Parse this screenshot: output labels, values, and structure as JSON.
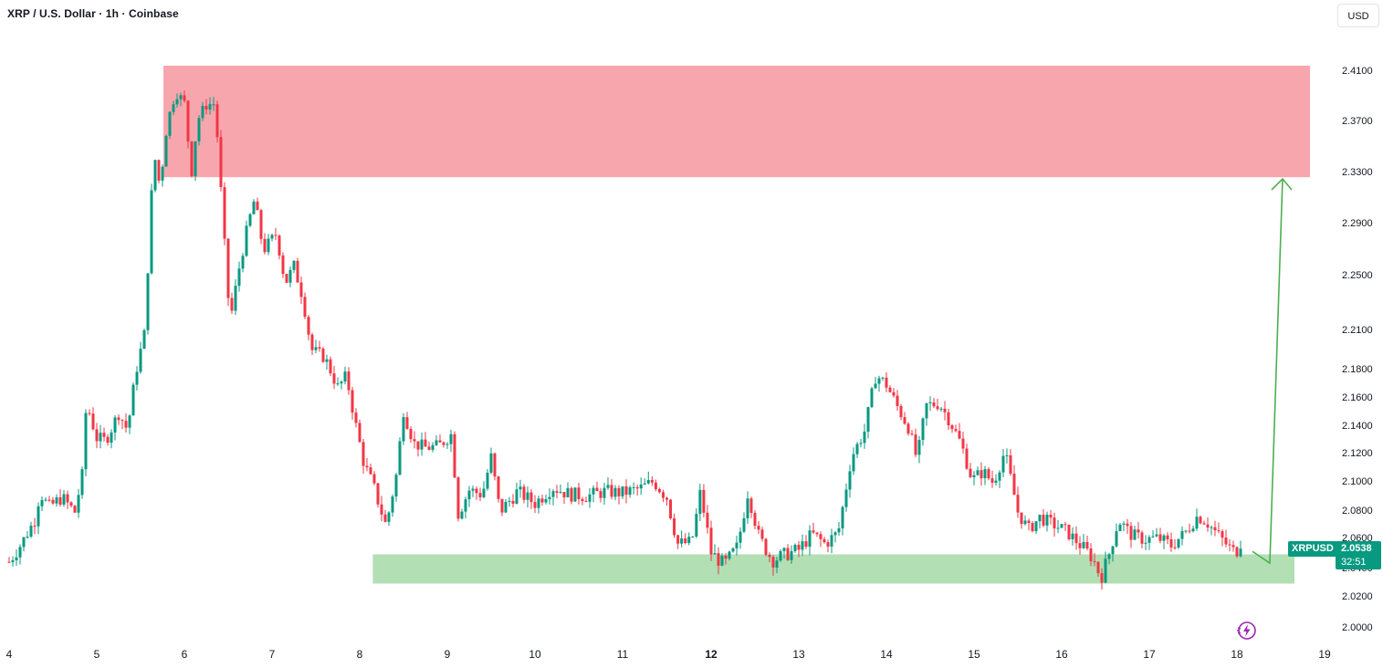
{
  "header": {
    "title": "XRP / U.S. Dollar · 1h · Coinbase",
    "currency": "USD"
  },
  "price_axis": {
    "labels": [
      "2.4100",
      "2.3700",
      "2.3300",
      "2.2900",
      "2.2500",
      "2.2100",
      "2.1800",
      "2.1600",
      "2.1400",
      "2.1200",
      "2.1000",
      "2.0800",
      "2.0600",
      "2.0400",
      "2.0200",
      "2.0000"
    ]
  },
  "time_axis": {
    "labels": [
      {
        "text": "4",
        "bold": false
      },
      {
        "text": "5",
        "bold": false
      },
      {
        "text": "6",
        "bold": false
      },
      {
        "text": "7",
        "bold": false
      },
      {
        "text": "8",
        "bold": false
      },
      {
        "text": "9",
        "bold": false
      },
      {
        "text": "10",
        "bold": false
      },
      {
        "text": "11",
        "bold": false
      },
      {
        "text": "12",
        "bold": true
      },
      {
        "text": "13",
        "bold": false
      },
      {
        "text": "14",
        "bold": false
      },
      {
        "text": "15",
        "bold": false
      },
      {
        "text": "16",
        "bold": false
      },
      {
        "text": "17",
        "bold": false
      },
      {
        "text": "18",
        "bold": false
      },
      {
        "text": "19",
        "bold": false
      }
    ]
  },
  "last_price": {
    "symbol": "XRPUSD",
    "value": "2.0538",
    "countdown": "32:51"
  },
  "colors": {
    "up": "#089981",
    "down": "#f23645",
    "supply_zone": "#f7a6ad",
    "demand_zone": "#b2dfb4",
    "projection": "#4caf50"
  },
  "chart_data": {
    "type": "candlestick",
    "symbol": "XRP / U.S. Dollar",
    "interval": "1h",
    "exchange": "Coinbase",
    "x_axis_days": [
      4,
      5,
      6,
      7,
      8,
      9,
      10,
      11,
      12,
      13,
      14,
      15,
      16,
      17,
      18,
      19
    ],
    "y_range": [
      2.0,
      2.415
    ],
    "zones": [
      {
        "type": "resistance",
        "top": 2.415,
        "bottom": 2.327,
        "start_day": 5.8,
        "end_day": 19.0
      },
      {
        "type": "support",
        "top": 2.05,
        "bottom": 2.03,
        "start_day": 8.15,
        "end_day": 18.65
      }
    ],
    "projection": {
      "from": {
        "day": 18.25,
        "price": 2.045
      },
      "to": {
        "day": 18.5,
        "price": 2.33
      }
    },
    "path_points": [
      [
        4.0,
        2.045
      ],
      [
        4.15,
        2.058
      ],
      [
        4.3,
        2.075
      ],
      [
        4.35,
        2.094
      ],
      [
        4.45,
        2.083
      ],
      [
        4.6,
        2.09
      ],
      [
        4.75,
        2.08
      ],
      [
        4.85,
        2.11
      ],
      [
        4.88,
        2.158
      ],
      [
        5.0,
        2.132
      ],
      [
        5.1,
        2.13
      ],
      [
        5.25,
        2.15
      ],
      [
        5.35,
        2.138
      ],
      [
        5.45,
        2.18
      ],
      [
        5.55,
        2.21
      ],
      [
        5.6,
        2.28
      ],
      [
        5.65,
        2.347
      ],
      [
        5.72,
        2.32
      ],
      [
        5.8,
        2.368
      ],
      [
        5.9,
        2.395
      ],
      [
        6.0,
        2.385
      ],
      [
        6.08,
        2.33
      ],
      [
        6.15,
        2.372
      ],
      [
        6.25,
        2.384
      ],
      [
        6.35,
        2.385
      ],
      [
        6.45,
        2.282
      ],
      [
        6.52,
        2.216
      ],
      [
        6.62,
        2.255
      ],
      [
        6.72,
        2.288
      ],
      [
        6.8,
        2.31
      ],
      [
        6.9,
        2.27
      ],
      [
        7.05,
        2.283
      ],
      [
        7.15,
        2.245
      ],
      [
        7.25,
        2.258
      ],
      [
        7.35,
        2.235
      ],
      [
        7.45,
        2.196
      ],
      [
        7.6,
        2.19
      ],
      [
        7.75,
        2.168
      ],
      [
        7.85,
        2.176
      ],
      [
        7.95,
        2.143
      ],
      [
        8.05,
        2.113
      ],
      [
        8.15,
        2.099
      ],
      [
        8.3,
        2.07
      ],
      [
        8.42,
        2.106
      ],
      [
        8.5,
        2.152
      ],
      [
        8.62,
        2.128
      ],
      [
        8.75,
        2.125
      ],
      [
        8.9,
        2.126
      ],
      [
        9.05,
        2.135
      ],
      [
        9.12,
        2.078
      ],
      [
        9.25,
        2.095
      ],
      [
        9.4,
        2.092
      ],
      [
        9.5,
        2.118
      ],
      [
        9.6,
        2.08
      ],
      [
        9.8,
        2.094
      ],
      [
        10.0,
        2.086
      ],
      [
        10.2,
        2.097
      ],
      [
        10.4,
        2.092
      ],
      [
        10.6,
        2.091
      ],
      [
        10.8,
        2.094
      ],
      [
        11.0,
        2.093
      ],
      [
        11.2,
        2.096
      ],
      [
        11.35,
        2.101
      ],
      [
        11.5,
        2.09
      ],
      [
        11.62,
        2.057
      ],
      [
        11.78,
        2.058
      ],
      [
        11.88,
        2.094
      ],
      [
        12.0,
        2.051
      ],
      [
        12.15,
        2.043
      ],
      [
        12.3,
        2.055
      ],
      [
        12.42,
        2.094
      ],
      [
        12.55,
        2.061
      ],
      [
        12.7,
        2.046
      ],
      [
        12.85,
        2.05
      ],
      [
        13.0,
        2.053
      ],
      [
        13.15,
        2.064
      ],
      [
        13.3,
        2.057
      ],
      [
        13.45,
        2.065
      ],
      [
        13.6,
        2.118
      ],
      [
        13.75,
        2.137
      ],
      [
        13.88,
        2.177
      ],
      [
        14.0,
        2.17
      ],
      [
        14.12,
        2.155
      ],
      [
        14.25,
        2.14
      ],
      [
        14.35,
        2.116
      ],
      [
        14.45,
        2.155
      ],
      [
        14.6,
        2.157
      ],
      [
        14.72,
        2.145
      ],
      [
        14.85,
        2.128
      ],
      [
        14.98,
        2.102
      ],
      [
        15.1,
        2.108
      ],
      [
        15.22,
        2.1
      ],
      [
        15.35,
        2.122
      ],
      [
        15.5,
        2.08
      ],
      [
        15.62,
        2.067
      ],
      [
        15.75,
        2.076
      ],
      [
        15.9,
        2.071
      ],
      [
        16.05,
        2.066
      ],
      [
        16.2,
        2.057
      ],
      [
        16.35,
        2.048
      ],
      [
        16.45,
        2.034
      ],
      [
        16.55,
        2.052
      ],
      [
        16.65,
        2.074
      ],
      [
        16.8,
        2.063
      ],
      [
        16.95,
        2.06
      ],
      [
        17.1,
        2.061
      ],
      [
        17.25,
        2.056
      ],
      [
        17.4,
        2.064
      ],
      [
        17.55,
        2.077
      ],
      [
        17.65,
        2.073
      ],
      [
        17.8,
        2.062
      ],
      [
        17.95,
        2.052
      ],
      [
        18.05,
        2.054
      ]
    ],
    "last_price": 2.0538
  }
}
